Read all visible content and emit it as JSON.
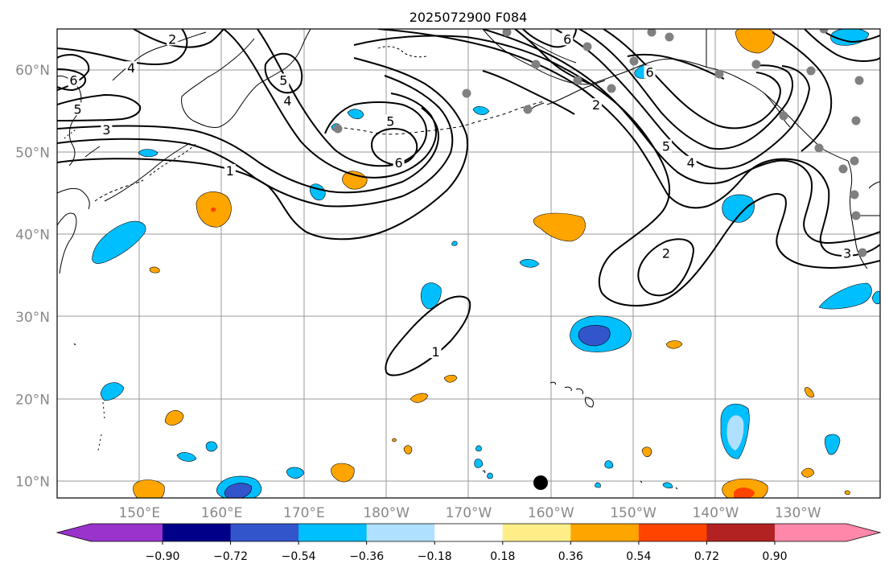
{
  "map": {
    "title": "2025072900 F084",
    "lat_ticks": [
      "10°N",
      "20°N",
      "30°N",
      "40°N",
      "50°N",
      "60°N"
    ],
    "lon_ticks": [
      "150°E",
      "160°E",
      "170°E",
      "180°W",
      "170°W",
      "160°W",
      "150°W",
      "140°W",
      "130°W"
    ],
    "extent": {
      "lon_min": 140,
      "lon_max": 240,
      "lat_min": 8,
      "lat_max": 65
    },
    "contour_color": "#000000",
    "coast_color": "#000000",
    "grid_color": "#999999",
    "station_marker_color": "#808080",
    "center_marker_color": "#000000",
    "contour_labels": [
      {
        "text": "1",
        "lon": 161,
        "lat": 47.5
      },
      {
        "text": "2",
        "lon": 154,
        "lat": 63.5
      },
      {
        "text": "3",
        "lon": 146,
        "lat": 52.5
      },
      {
        "text": "4",
        "lon": 149,
        "lat": 60
      },
      {
        "text": "5",
        "lon": 142.5,
        "lat": 55
      },
      {
        "text": "6",
        "lon": 142,
        "lat": 58.5
      },
      {
        "text": "5",
        "lon": 167.5,
        "lat": 58.5
      },
      {
        "text": "4",
        "lon": 168,
        "lat": 56
      },
      {
        "text": "5",
        "lon": 180.5,
        "lat": 53.5
      },
      {
        "text": "6",
        "lon": 181.5,
        "lat": 48.5
      },
      {
        "text": "2",
        "lon": 205.5,
        "lat": 55.5
      },
      {
        "text": "5",
        "lon": 214,
        "lat": 50.5
      },
      {
        "text": "4",
        "lon": 217,
        "lat": 48.5
      },
      {
        "text": "2",
        "lon": 214,
        "lat": 37.5
      },
      {
        "text": "1",
        "lon": 186,
        "lat": 25.5
      },
      {
        "text": "3",
        "lon": 236,
        "lat": 37.5
      },
      {
        "text": "6",
        "lon": 212,
        "lat": 59.5
      },
      {
        "text": "6",
        "lon": 202,
        "lat": 63.5
      }
    ]
  },
  "colorbar": {
    "labels": [
      "−0.90",
      "−0.72",
      "−0.54",
      "−0.36",
      "−0.18",
      "0.18",
      "0.36",
      "0.54",
      "0.72",
      "0.90"
    ],
    "colors": [
      "#9933CC",
      "#000088",
      "#3355CC",
      "#00BFFF",
      "#B0E0FF",
      "#FFFFFF",
      "#FFEE88",
      "#FFA500",
      "#FF4400",
      "#B22222",
      "#FF88AA"
    ]
  }
}
